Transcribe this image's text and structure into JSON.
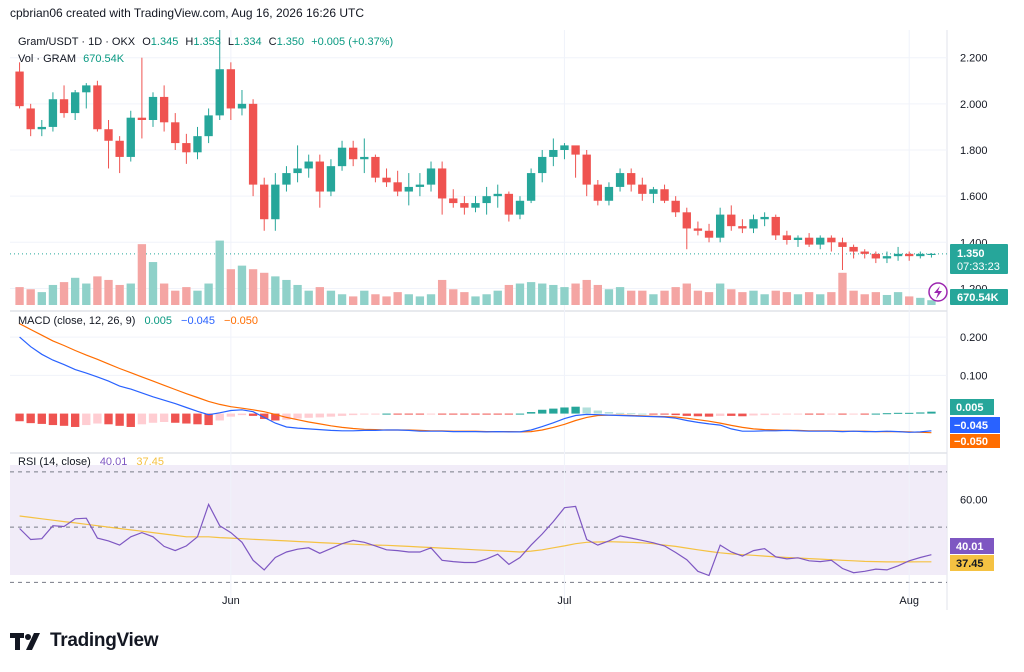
{
  "header": {
    "text": "cpbrian06 created with TradingView.com, Aug 16, 2026 16:26 UTC"
  },
  "legend": {
    "symbol": "Gram/USDT · 1D · OKX",
    "o_label": "O",
    "o": "1.345",
    "h_label": "H",
    "h": "1.353",
    "l_label": "L",
    "l": "1.334",
    "c_label": "C",
    "c": "1.350",
    "change": "+0.005 (+0.37%)",
    "vol_label": "Vol · GRAM",
    "vol": "670.54K",
    "macd_label": "MACD (close, 12, 26, 9)",
    "macd_hist": "0.005",
    "macd_line": "−0.045",
    "macd_signal": "−0.050",
    "rsi_label": "RSI (14, close)",
    "rsi": "40.01",
    "rsi_ma": "37.45"
  },
  "price_axis": {
    "ticks": [
      "2.200",
      "2.000",
      "1.800",
      "1.600",
      "1.400",
      "1.200"
    ],
    "last_price": "1.350",
    "countdown": "07:33:23",
    "last_volume": "670.54K"
  },
  "macd_axis": {
    "ticks": [
      "0.200",
      "0.100"
    ],
    "hist_value": "0.005",
    "macd_value": "−0.045",
    "signal_value": "−0.050"
  },
  "rsi_axis": {
    "ticks": [
      "60.00"
    ],
    "rsi_value": "40.01",
    "ma_value": "37.45"
  },
  "x_axis": {
    "labels": [
      "Jun",
      "Jul",
      "Aug"
    ]
  },
  "footer": {
    "brand": "TradingView"
  },
  "colors": {
    "up": "#26a69a",
    "down": "#ef5350",
    "vol_up": "#8fd1c9",
    "vol_down": "#f4a5a3",
    "macd": "#2962ff",
    "signal": "#ff6d00",
    "rsi": "#7e57c2",
    "rsi_ma": "#f5c242",
    "rsi_band": "#ede7f6",
    "hist_up_strong": "#26a69a",
    "hist_up_weak": "#b2dfdb",
    "hist_down_strong": "#ef5350",
    "hist_down_weak": "#ffcdd2"
  },
  "chart_data": {
    "type": "candlestick",
    "x_labels": [
      "Jun",
      "Jul",
      "Aug"
    ],
    "price_ylim": [
      1.15,
      2.32
    ],
    "macd_ylim": [
      -0.09,
      0.25
    ],
    "rsi_ylim": [
      20,
      75
    ],
    "rsi_bands": [
      70,
      50,
      30
    ],
    "candles": [
      [
        2.14,
        2.18,
        1.98,
        1.99,
        0.25
      ],
      [
        1.98,
        2.0,
        1.86,
        1.89,
        0.22
      ],
      [
        1.89,
        1.93,
        1.86,
        1.9,
        0.18
      ],
      [
        1.9,
        2.05,
        1.88,
        2.02,
        0.28
      ],
      [
        2.02,
        2.08,
        1.94,
        1.96,
        0.32
      ],
      [
        1.96,
        2.06,
        1.93,
        2.05,
        0.38
      ],
      [
        2.05,
        2.09,
        1.98,
        2.08,
        0.3
      ],
      [
        2.08,
        2.1,
        1.88,
        1.89,
        0.4
      ],
      [
        1.89,
        1.93,
        1.72,
        1.84,
        0.35
      ],
      [
        1.84,
        1.86,
        1.7,
        1.77,
        0.28
      ],
      [
        1.77,
        1.97,
        1.75,
        1.94,
        0.3
      ],
      [
        1.94,
        2.2,
        1.85,
        1.93,
        0.85
      ],
      [
        1.93,
        2.05,
        1.9,
        2.03,
        0.6
      ],
      [
        2.03,
        2.08,
        1.88,
        1.92,
        0.3
      ],
      [
        1.92,
        1.96,
        1.8,
        1.83,
        0.2
      ],
      [
        1.83,
        1.87,
        1.74,
        1.79,
        0.25
      ],
      [
        1.79,
        1.9,
        1.76,
        1.86,
        0.2
      ],
      [
        1.86,
        1.98,
        1.83,
        1.95,
        0.3
      ],
      [
        1.95,
        2.32,
        1.93,
        2.15,
        0.9
      ],
      [
        2.15,
        2.18,
        1.93,
        1.98,
        0.5
      ],
      [
        1.98,
        2.06,
        1.95,
        2.0,
        0.55
      ],
      [
        2.0,
        2.02,
        1.6,
        1.65,
        0.5
      ],
      [
        1.65,
        1.68,
        1.45,
        1.5,
        0.45
      ],
      [
        1.5,
        1.7,
        1.45,
        1.65,
        0.4
      ],
      [
        1.65,
        1.73,
        1.62,
        1.7,
        0.35
      ],
      [
        1.7,
        1.82,
        1.66,
        1.72,
        0.28
      ],
      [
        1.72,
        1.78,
        1.68,
        1.75,
        0.2
      ],
      [
        1.75,
        1.78,
        1.55,
        1.62,
        0.25
      ],
      [
        1.62,
        1.76,
        1.6,
        1.73,
        0.2
      ],
      [
        1.73,
        1.84,
        1.71,
        1.81,
        0.15
      ],
      [
        1.81,
        1.84,
        1.73,
        1.76,
        0.12
      ],
      [
        1.76,
        1.85,
        1.7,
        1.77,
        0.2
      ],
      [
        1.77,
        1.78,
        1.66,
        1.68,
        0.15
      ],
      [
        1.68,
        1.72,
        1.64,
        1.66,
        0.12
      ],
      [
        1.66,
        1.71,
        1.6,
        1.62,
        0.18
      ],
      [
        1.62,
        1.7,
        1.56,
        1.64,
        0.15
      ],
      [
        1.64,
        1.7,
        1.6,
        1.65,
        0.12
      ],
      [
        1.65,
        1.75,
        1.62,
        1.72,
        0.15
      ],
      [
        1.72,
        1.75,
        1.52,
        1.59,
        0.35
      ],
      [
        1.59,
        1.63,
        1.55,
        1.57,
        0.22
      ],
      [
        1.57,
        1.6,
        1.52,
        1.55,
        0.18
      ],
      [
        1.55,
        1.6,
        1.53,
        1.57,
        0.12
      ],
      [
        1.57,
        1.64,
        1.52,
        1.6,
        0.15
      ],
      [
        1.6,
        1.65,
        1.55,
        1.61,
        0.2
      ],
      [
        1.61,
        1.62,
        1.49,
        1.52,
        0.28
      ],
      [
        1.52,
        1.6,
        1.5,
        1.58,
        0.3
      ],
      [
        1.58,
        1.72,
        1.57,
        1.7,
        0.32
      ],
      [
        1.7,
        1.8,
        1.66,
        1.77,
        0.3
      ],
      [
        1.77,
        1.85,
        1.73,
        1.8,
        0.28
      ],
      [
        1.8,
        1.83,
        1.76,
        1.82,
        0.25
      ],
      [
        1.82,
        1.81,
        1.68,
        1.78,
        0.3
      ],
      [
        1.78,
        1.8,
        1.6,
        1.65,
        0.35
      ],
      [
        1.65,
        1.67,
        1.56,
        1.58,
        0.28
      ],
      [
        1.58,
        1.66,
        1.56,
        1.64,
        0.22
      ],
      [
        1.64,
        1.72,
        1.62,
        1.7,
        0.25
      ],
      [
        1.7,
        1.72,
        1.62,
        1.65,
        0.2
      ],
      [
        1.65,
        1.68,
        1.58,
        1.61,
        0.2
      ],
      [
        1.61,
        1.64,
        1.57,
        1.63,
        0.15
      ],
      [
        1.63,
        1.65,
        1.57,
        1.58,
        0.2
      ],
      [
        1.58,
        1.6,
        1.51,
        1.53,
        0.25
      ],
      [
        1.53,
        1.55,
        1.37,
        1.46,
        0.3
      ],
      [
        1.46,
        1.49,
        1.43,
        1.45,
        0.2
      ],
      [
        1.45,
        1.48,
        1.4,
        1.42,
        0.18
      ],
      [
        1.42,
        1.55,
        1.4,
        1.52,
        0.3
      ],
      [
        1.52,
        1.56,
        1.45,
        1.47,
        0.22
      ],
      [
        1.47,
        1.5,
        1.44,
        1.46,
        0.18
      ],
      [
        1.46,
        1.52,
        1.44,
        1.5,
        0.2
      ],
      [
        1.5,
        1.53,
        1.47,
        1.51,
        0.15
      ],
      [
        1.51,
        1.52,
        1.41,
        1.43,
        0.2
      ],
      [
        1.43,
        1.45,
        1.39,
        1.41,
        0.18
      ],
      [
        1.41,
        1.43,
        1.38,
        1.42,
        0.15
      ],
      [
        1.42,
        1.44,
        1.38,
        1.39,
        0.18
      ],
      [
        1.39,
        1.43,
        1.37,
        1.42,
        0.15
      ],
      [
        1.42,
        1.43,
        1.36,
        1.4,
        0.18
      ],
      [
        1.4,
        1.42,
        1.28,
        1.38,
        0.45
      ],
      [
        1.38,
        1.39,
        1.33,
        1.36,
        0.2
      ],
      [
        1.36,
        1.37,
        1.33,
        1.35,
        0.15
      ],
      [
        1.35,
        1.36,
        1.31,
        1.33,
        0.18
      ],
      [
        1.33,
        1.36,
        1.31,
        1.34,
        0.14
      ],
      [
        1.34,
        1.38,
        1.32,
        1.35,
        0.18
      ],
      [
        1.35,
        1.36,
        1.32,
        1.34,
        0.12
      ],
      [
        1.34,
        1.36,
        1.33,
        1.35,
        0.1
      ],
      [
        1.345,
        1.353,
        1.334,
        1.35,
        0.067
      ]
    ],
    "macd": [
      0.2,
      0.175,
      0.155,
      0.14,
      0.128,
      0.115,
      0.106,
      0.096,
      0.085,
      0.072,
      0.064,
      0.054,
      0.044,
      0.035,
      0.026,
      0.016,
      0.006,
      -0.003,
      0.002,
      0.008,
      0.01,
      0.005,
      -0.01,
      -0.025,
      -0.035,
      -0.038,
      -0.04,
      -0.042,
      -0.044,
      -0.045,
      -0.045,
      -0.044,
      -0.044,
      -0.043,
      -0.043,
      -0.044,
      -0.046,
      -0.046,
      -0.046,
      -0.047,
      -0.047,
      -0.047,
      -0.048,
      -0.047,
      -0.048,
      -0.048,
      -0.043,
      -0.034,
      -0.024,
      -0.013,
      -0.005,
      -0.002,
      -0.003,
      -0.004,
      -0.005,
      -0.006,
      -0.007,
      -0.008,
      -0.009,
      -0.012,
      -0.018,
      -0.023,
      -0.027,
      -0.03,
      -0.04,
      -0.046,
      -0.046,
      -0.045,
      -0.045,
      -0.044,
      -0.045,
      -0.046,
      -0.046,
      -0.046,
      -0.047,
      -0.046,
      -0.047,
      -0.047,
      -0.046,
      -0.047,
      -0.049,
      -0.048,
      -0.045
    ],
    "signal": [
      0.235,
      0.22,
      0.205,
      0.19,
      0.178,
      0.165,
      0.153,
      0.142,
      0.13,
      0.118,
      0.107,
      0.096,
      0.085,
      0.074,
      0.063,
      0.052,
      0.042,
      0.032,
      0.024,
      0.018,
      0.014,
      0.01,
      0.005,
      -0.002,
      -0.01,
      -0.016,
      -0.022,
      -0.027,
      -0.032,
      -0.036,
      -0.039,
      -0.041,
      -0.042,
      -0.043,
      -0.043,
      -0.043,
      -0.044,
      -0.045,
      -0.045,
      -0.046,
      -0.046,
      -0.046,
      -0.047,
      -0.047,
      -0.047,
      -0.048,
      -0.047,
      -0.043,
      -0.036,
      -0.028,
      -0.018,
      -0.01,
      -0.005,
      -0.004,
      -0.004,
      -0.005,
      -0.006,
      -0.007,
      -0.008,
      -0.009,
      -0.012,
      -0.016,
      -0.02,
      -0.025,
      -0.031,
      -0.036,
      -0.04,
      -0.042,
      -0.043,
      -0.044,
      -0.044,
      -0.045,
      -0.045,
      -0.045,
      -0.046,
      -0.046,
      -0.046,
      -0.047,
      -0.047,
      -0.047,
      -0.048,
      -0.049,
      -0.05
    ],
    "macd_hist": [
      -0.02,
      -0.025,
      -0.027,
      -0.03,
      -0.032,
      -0.035,
      -0.03,
      -0.026,
      -0.028,
      -0.032,
      -0.035,
      -0.028,
      -0.024,
      -0.022,
      -0.024,
      -0.026,
      -0.028,
      -0.03,
      -0.018,
      -0.008,
      -0.004,
      -0.006,
      -0.014,
      -0.018,
      -0.016,
      -0.013,
      -0.011,
      -0.01,
      -0.008,
      -0.006,
      -0.004,
      -0.002,
      -0.001,
      0.0,
      -0.001,
      -0.001,
      -0.002,
      -0.001,
      -0.001,
      -0.001,
      -0.001,
      -0.001,
      -0.001,
      -0.001,
      -0.001,
      0.0,
      0.004,
      0.01,
      0.013,
      0.016,
      0.018,
      0.016,
      0.008,
      0.004,
      0.002,
      0.001,
      0.0,
      -0.001,
      -0.002,
      -0.004,
      -0.006,
      -0.007,
      -0.008,
      -0.006,
      -0.006,
      -0.007,
      -0.005,
      -0.004,
      -0.003,
      -0.002,
      -0.001,
      -0.002,
      -0.002,
      -0.001,
      -0.002,
      -0.001,
      -0.001,
      0.0,
      0.001,
      0.002,
      0.002,
      0.003,
      0.005
    ],
    "rsi": [
      49.5,
      45.5,
      45.8,
      50.5,
      50.2,
      53.0,
      53.2,
      46.0,
      45.0,
      43.5,
      46.5,
      48.0,
      46.5,
      43.0,
      41.5,
      43.2,
      46.5,
      58.2,
      50.5,
      48.0,
      44.5,
      38.0,
      34.5,
      39.0,
      41.0,
      42.0,
      42.5,
      40.5,
      42.2,
      44.0,
      45.2,
      44.5,
      43.2,
      41.8,
      41.5,
      41.0,
      41.0,
      42.5,
      38.0,
      37.5,
      37.2,
      37.2,
      38.5,
      40.2,
      36.5,
      39.0,
      43.5,
      47.5,
      52.0,
      57.0,
      57.5,
      45.5,
      43.5,
      45.0,
      46.8,
      46.0,
      45.2,
      44.3,
      43.2,
      40.8,
      38.2,
      34.0,
      32.5,
      43.5,
      41.0,
      39.5,
      41.5,
      42.2,
      39.2,
      38.5,
      38.9,
      37.8,
      37.5,
      38.0,
      35.0,
      33.5,
      34.0,
      34.8,
      34.5,
      36.0,
      37.8,
      39.0,
      40.01
    ],
    "rsi_ma": [
      54,
      53.5,
      53,
      52.5,
      52,
      51.5,
      51,
      50.5,
      50,
      49.5,
      49,
      48.5,
      48,
      47.5,
      47,
      46.5,
      46.5,
      46.5,
      46.2,
      46,
      45.8,
      45.6,
      45.4,
      45.2,
      45,
      44.8,
      44.6,
      44.4,
      44.2,
      44,
      43.8,
      43.6,
      43.5,
      43.4,
      43.2,
      43,
      42.8,
      42.6,
      42.4,
      42.2,
      42,
      41.8,
      41.6,
      41.4,
      41.2,
      41,
      41.3,
      41.8,
      42.5,
      43.2,
      44,
      44.5,
      44.6,
      44.7,
      44.6,
      44.5,
      44.3,
      44,
      43.5,
      43,
      42.4,
      41.8,
      41.2,
      40.7,
      40.3,
      40,
      39.8,
      39.5,
      39.2,
      39,
      38.8,
      38.6,
      38.4,
      38.2,
      38,
      37.8,
      37.6,
      37.5,
      37.4,
      37.4,
      37.4,
      37.45,
      37.45
    ]
  }
}
